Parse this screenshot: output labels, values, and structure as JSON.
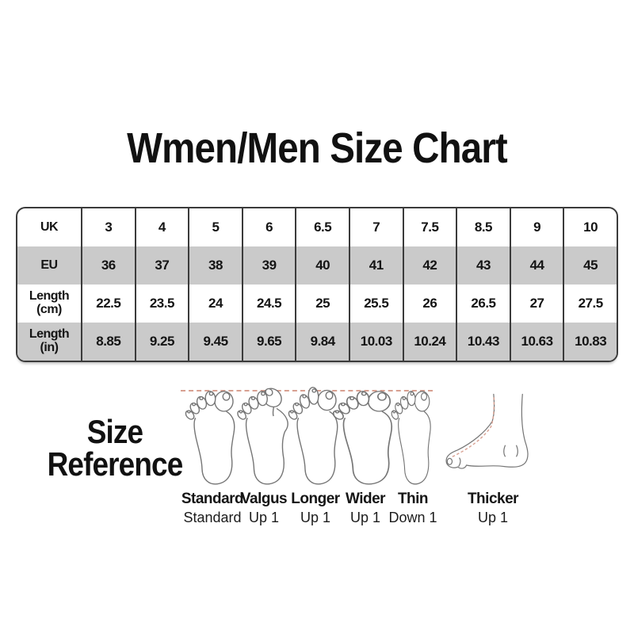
{
  "title": "Wmen/Men Size Chart",
  "chart_data": {
    "type": "table",
    "title": "Wmen/Men Size Chart",
    "rows": [
      {
        "label": "UK",
        "values": [
          "3",
          "4",
          "5",
          "6",
          "6.5",
          "7",
          "7.5",
          "8.5",
          "9",
          "10"
        ]
      },
      {
        "label": "EU",
        "values": [
          "36",
          "37",
          "38",
          "39",
          "40",
          "41",
          "42",
          "43",
          "44",
          "45"
        ]
      },
      {
        "label": "Length (cm)",
        "values": [
          "22.5",
          "23.5",
          "24",
          "24.5",
          "25",
          "25.5",
          "26",
          "26.5",
          "27",
          "27.5"
        ]
      },
      {
        "label": "Length (in)",
        "values": [
          "8.85",
          "9.25",
          "9.45",
          "9.65",
          "9.84",
          "10.03",
          "10.24",
          "10.43",
          "10.63",
          "10.83"
        ]
      }
    ]
  },
  "reference": {
    "heading_lines": [
      "Size",
      "Reference"
    ],
    "items": [
      {
        "label": "Standard",
        "adjustment": "Standard",
        "icon": "foot-top-standard-icon"
      },
      {
        "label": "Valgus",
        "adjustment": "Up 1",
        "icon": "foot-top-valgus-icon"
      },
      {
        "label": "Longer",
        "adjustment": "Up 1",
        "icon": "foot-top-longer-icon"
      },
      {
        "label": "Wider",
        "adjustment": "Up 1",
        "icon": "foot-top-wider-icon"
      },
      {
        "label": "Thin",
        "adjustment": "Down 1",
        "icon": "foot-top-thin-icon"
      },
      {
        "label": "Thicker",
        "adjustment": "Up 1",
        "icon": "foot-side-thicker-icon"
      }
    ]
  },
  "colors": {
    "row_alt_gray": "#cacaca",
    "table_border": "#3b3b3b",
    "text": "#141414",
    "dashed_guide": "#d8a091",
    "foot_outline": "#757575"
  }
}
